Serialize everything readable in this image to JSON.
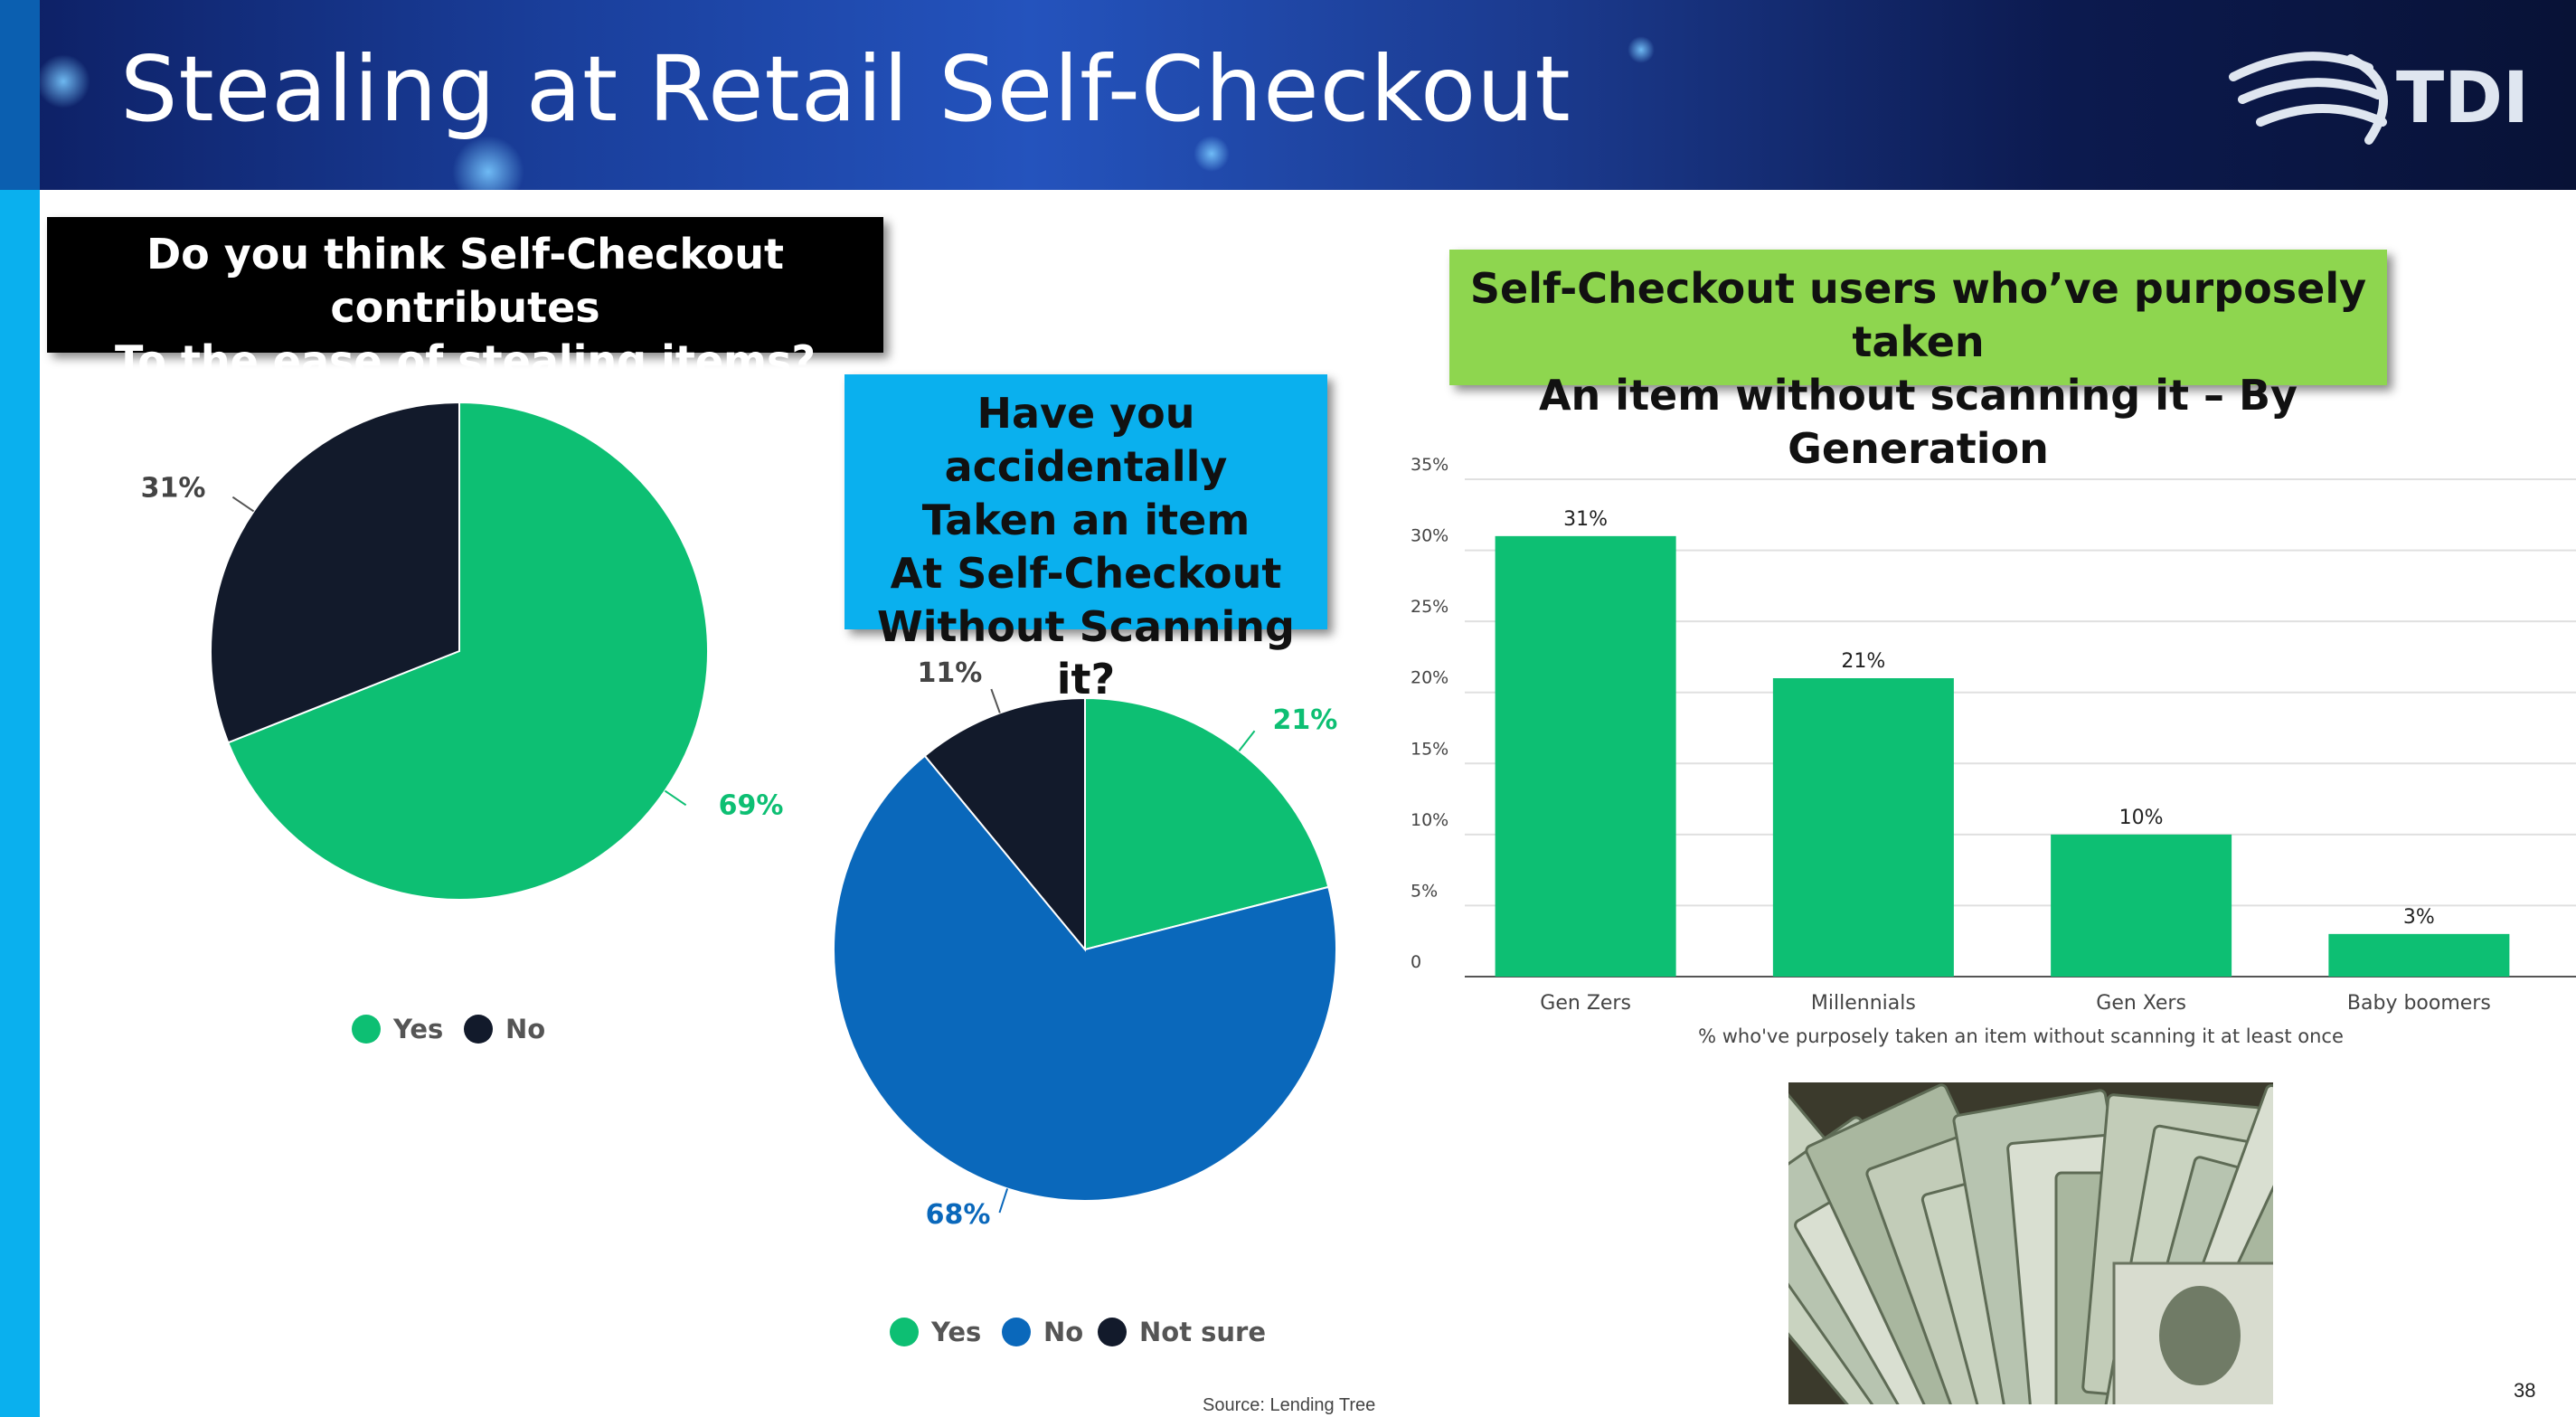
{
  "header": {
    "title": "Stealing at Retail Self-Checkout",
    "logo_text": "TDI"
  },
  "questions": {
    "q1": {
      "line1": "Do you think Self-Checkout contributes",
      "line2": "To the ease of stealing items?"
    },
    "q2": {
      "line1": "Have you accidentally",
      "line2": "Taken an item",
      "line3": "At Self-Checkout",
      "line4": "Without Scanning it?"
    },
    "q3": {
      "line1": "Self-Checkout users who’ve purposely taken",
      "line2": "An item without scanning it – By Generation"
    }
  },
  "colors": {
    "green": "#0dbf73",
    "navy": "#121a2b",
    "blue": "#0a68bb",
    "gridline": "#e0e0e0"
  },
  "chart_data": [
    {
      "type": "pie",
      "title": "",
      "slices": [
        {
          "label": "Yes",
          "value": 69,
          "display": "69%",
          "color": "#0dbf73"
        },
        {
          "label": "No",
          "value": 31,
          "display": "31%",
          "color": "#121a2b"
        }
      ],
      "legend": [
        "Yes",
        "No"
      ],
      "legend_placement": "bottom"
    },
    {
      "type": "pie",
      "title": "",
      "slices": [
        {
          "label": "Yes",
          "value": 21,
          "display": "21%",
          "color": "#0dbf73"
        },
        {
          "label": "No",
          "value": 68,
          "display": "68%",
          "color": "#0a68bb"
        },
        {
          "label": "Not sure",
          "value": 11,
          "display": "11%",
          "color": "#121a2b"
        }
      ],
      "legend": [
        "Yes",
        "No",
        "Not sure"
      ],
      "legend_placement": "bottom"
    },
    {
      "type": "bar",
      "title": "",
      "categories": [
        "Gen Zers",
        "Millennials",
        "Gen Xers",
        "Baby boomers"
      ],
      "values": [
        31,
        21,
        10,
        3
      ],
      "value_labels": [
        "31%",
        "21%",
        "10%",
        "3%"
      ],
      "yticks": [
        "0",
        "5%",
        "10%",
        "15%",
        "20%",
        "25%",
        "30%",
        "35%"
      ],
      "ylim": [
        0,
        35
      ],
      "xlabel": "% who've purposely taken an item without scanning it at least once",
      "ylabel": "",
      "grid": true,
      "color": "#0dbf73"
    }
  ],
  "footer": {
    "source": "Source: Lending Tree",
    "page_number": "38"
  }
}
